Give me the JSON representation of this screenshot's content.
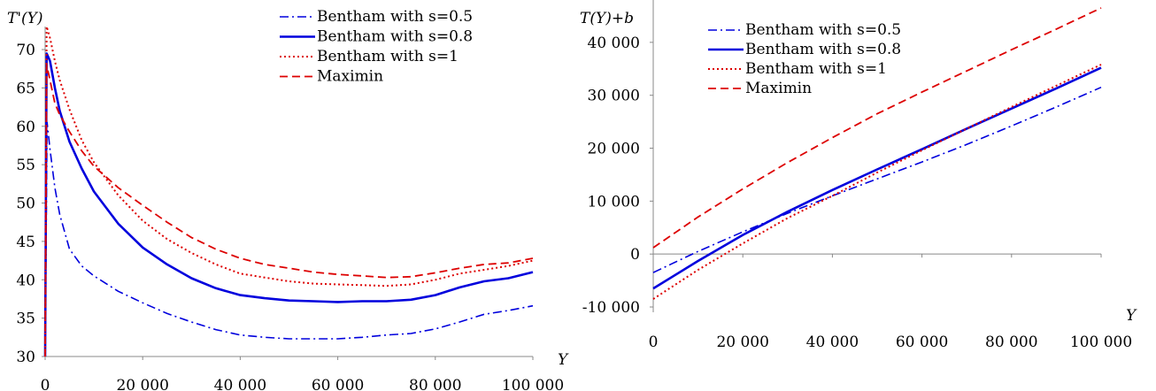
{
  "chart_data": [
    {
      "type": "line",
      "ylabel": "T'(Y)",
      "xlabel": "Y",
      "xlim": [
        0,
        100000
      ],
      "ylim": [
        30,
        73
      ],
      "xticks": [
        "0",
        "20 000",
        "40 000",
        "60 000",
        "80 000",
        "100 000"
      ],
      "yticks": [
        "30",
        "35",
        "40",
        "45",
        "50",
        "55",
        "60",
        "65",
        "70"
      ],
      "legend_position": "top-right",
      "series": [
        {
          "name": "Bentham with s=0.5",
          "color": "#0000dd",
          "style": "dash-dot",
          "x": [
            0,
            400,
            1000,
            2000,
            3000,
            5000,
            7500,
            10000,
            15000,
            20000,
            25000,
            30000,
            35000,
            40000,
            45000,
            50000,
            55000,
            60000,
            65000,
            70000,
            75000,
            80000,
            85000,
            90000,
            95000,
            100000
          ],
          "y": [
            30,
            60.5,
            57,
            52,
            48.5,
            44,
            41.8,
            40.5,
            38.5,
            37,
            35.6,
            34.5,
            33.5,
            32.8,
            32.5,
            32.3,
            32.3,
            32.3,
            32.5,
            32.8,
            33,
            33.6,
            34.5,
            35.5,
            36,
            36.6
          ]
        },
        {
          "name": "Bentham with s=0.8",
          "color": "#0000dd",
          "style": "solid",
          "x": [
            0,
            300,
            1000,
            2000,
            3000,
            5000,
            7500,
            10000,
            15000,
            20000,
            25000,
            30000,
            35000,
            40000,
            45000,
            50000,
            55000,
            60000,
            65000,
            70000,
            75000,
            80000,
            85000,
            90000,
            95000,
            100000
          ],
          "y": [
            30,
            69.5,
            68.5,
            65,
            62,
            58,
            54.5,
            51.5,
            47.3,
            44.2,
            42,
            40.2,
            38.9,
            38,
            37.6,
            37.3,
            37.2,
            37.1,
            37.2,
            37.2,
            37.4,
            38,
            39,
            39.8,
            40.2,
            41
          ]
        },
        {
          "name": "Bentham with s=1",
          "color": "#dd0000",
          "style": "dotted",
          "x": [
            0,
            300,
            1000,
            2000,
            3000,
            5000,
            7500,
            10000,
            15000,
            20000,
            25000,
            30000,
            35000,
            40000,
            45000,
            50000,
            55000,
            60000,
            65000,
            70000,
            75000,
            80000,
            85000,
            90000,
            95000,
            100000
          ],
          "y": [
            30,
            73,
            71.5,
            68.5,
            66,
            62.2,
            58.2,
            55.3,
            51,
            47.7,
            45.3,
            43.5,
            42,
            40.8,
            40.3,
            39.8,
            39.5,
            39.4,
            39.3,
            39.2,
            39.4,
            40,
            40.8,
            41.3,
            41.8,
            42.5
          ]
        },
        {
          "name": "Maximin",
          "color": "#dd0000",
          "style": "dashed",
          "x": [
            0,
            300,
            1000,
            2000,
            3000,
            5000,
            7500,
            10000,
            15000,
            20000,
            25000,
            30000,
            35000,
            40000,
            45000,
            50000,
            55000,
            60000,
            65000,
            70000,
            75000,
            80000,
            85000,
            90000,
            95000,
            100000
          ],
          "y": [
            30,
            68,
            66,
            63,
            61.5,
            59.3,
            56.8,
            54.8,
            52,
            49.7,
            47.5,
            45.5,
            44,
            42.8,
            42,
            41.5,
            41,
            40.7,
            40.5,
            40.3,
            40.4,
            40.9,
            41.5,
            42,
            42.2,
            42.8
          ]
        }
      ]
    },
    {
      "type": "line",
      "ylabel": "T(Y)+b",
      "xlabel": "Y",
      "xlim": [
        0,
        100000
      ],
      "ylim": [
        -11000,
        48000
      ],
      "xticks": [
        "0",
        "20 000",
        "40 000",
        "60 000",
        "80 000",
        "100 000"
      ],
      "yticks": [
        "-10 000",
        "0",
        "10 000",
        "20 000",
        "30 000",
        "40 000"
      ],
      "legend_position": "top-left",
      "series": [
        {
          "name": "Bentham with s=0.5",
          "color": "#0000dd",
          "style": "dash-dot",
          "x": [
            0,
            10000,
            20000,
            30000,
            40000,
            50000,
            60000,
            70000,
            80000,
            90000,
            100000
          ],
          "y": [
            -3500,
            500,
            4200,
            7700,
            11000,
            14200,
            17400,
            20700,
            24200,
            27800,
            31500
          ]
        },
        {
          "name": "Bentham with s=0.8",
          "color": "#0000dd",
          "style": "solid",
          "x": [
            0,
            10000,
            20000,
            30000,
            40000,
            50000,
            60000,
            70000,
            80000,
            90000,
            100000
          ],
          "y": [
            -6500,
            -1300,
            3600,
            8000,
            12100,
            16000,
            19800,
            23700,
            27500,
            31300,
            35200
          ]
        },
        {
          "name": "Bentham with s=1",
          "color": "#dd0000",
          "style": "dotted",
          "x": [
            0,
            10000,
            20000,
            30000,
            40000,
            50000,
            60000,
            70000,
            80000,
            90000,
            100000
          ],
          "y": [
            -8500,
            -3000,
            2000,
            6800,
            11000,
            15400,
            19600,
            23700,
            27800,
            31800,
            35800
          ]
        },
        {
          "name": "Maximin",
          "color": "#dd0000",
          "style": "dashed",
          "x": [
            0,
            10000,
            20000,
            30000,
            40000,
            50000,
            60000,
            70000,
            80000,
            90000,
            100000
          ],
          "y": [
            1200,
            7000,
            12300,
            17300,
            22000,
            26500,
            30600,
            34600,
            38600,
            42500,
            46500
          ]
        }
      ]
    }
  ]
}
